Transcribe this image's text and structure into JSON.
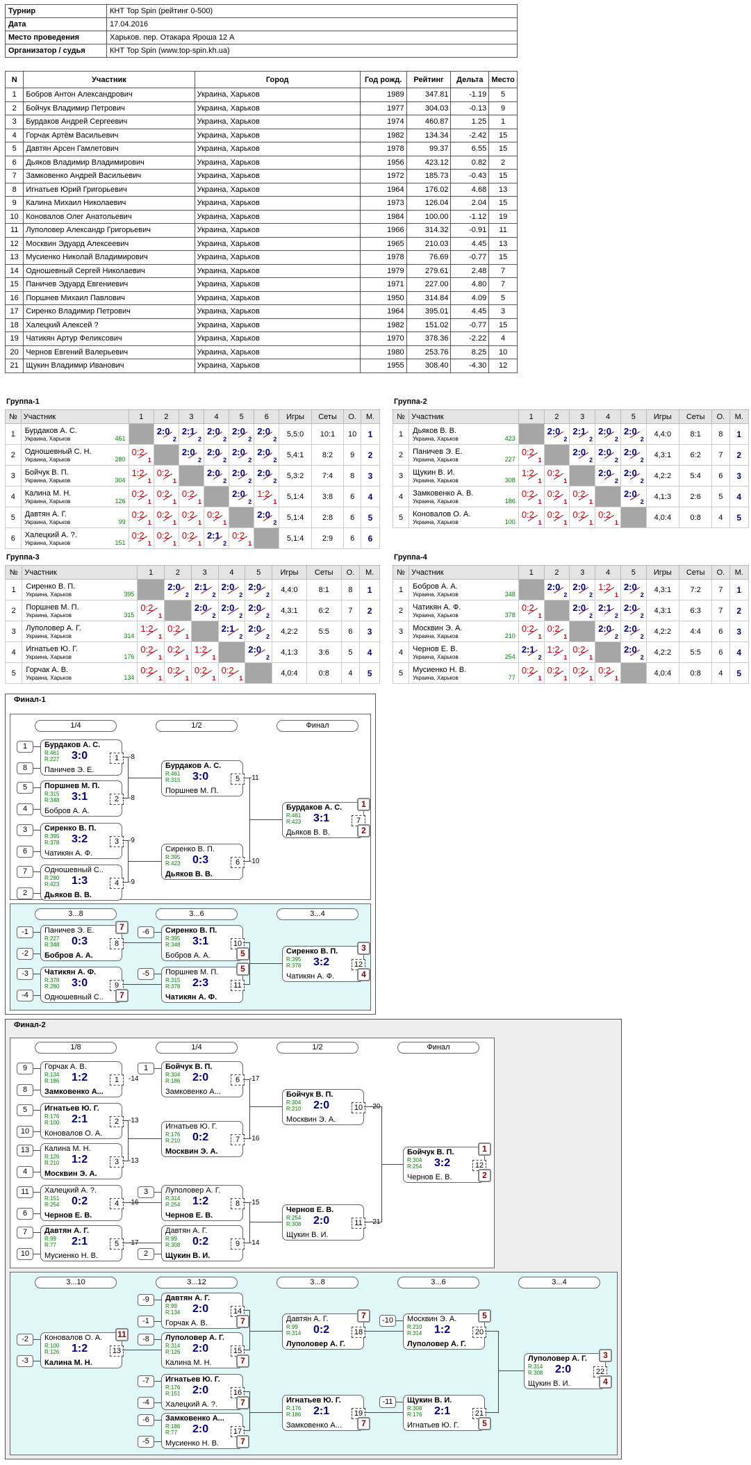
{
  "info": [
    {
      "k": "Турнир",
      "v": "КНТ Top Spin (рейтинг 0-500)"
    },
    {
      "k": "Дата",
      "v": "17.04.2016"
    },
    {
      "k": "Место проведения",
      "v": "Харьков. пер. Отакара Яроша 12 А"
    },
    {
      "k": "Организатор / судья",
      "v": "КНТ Top Spin (www.top-spin.kh.ua)"
    }
  ],
  "participants_header": [
    "N",
    "Участник",
    "Город",
    "Год рожд.",
    "Рейтинг",
    "Дельта",
    "Место"
  ],
  "participants": [
    [
      "1",
      "Бобров Антон Александрович",
      "Украина, Харьков",
      "1989",
      "347.81",
      "-1.19",
      "5"
    ],
    [
      "2",
      "Бойчук Владимир Петрович",
      "Украина, Харьков",
      "1977",
      "304.03",
      "-0.13",
      "9"
    ],
    [
      "3",
      "Бурдаков Андрей Сергеевич",
      "Украина, Харьков",
      "1974",
      "460.87",
      "1.25",
      "1"
    ],
    [
      "4",
      "Горчак Артём Васильевич",
      "Украина, Харьков",
      "1982",
      "134.34",
      "-2.42",
      "15"
    ],
    [
      "5",
      "Давтян Арсен Гамлетович",
      "Украина, Харьков",
      "1978",
      "99.37",
      "6.55",
      "15"
    ],
    [
      "6",
      "Дьяков Владимир Владимирович",
      "Украина, Харьков",
      "1956",
      "423.12",
      "0.82",
      "2"
    ],
    [
      "7",
      "Замковенко Андрей Васильевич",
      "Украина, Харьков",
      "1972",
      "185.73",
      "-0.43",
      "15"
    ],
    [
      "8",
      "Игнатьев Юрий Григорьевич",
      "Украина, Харьков",
      "1964",
      "176.02",
      "4.68",
      "13"
    ],
    [
      "9",
      "Калина Михаил Николаевич",
      "Украина, Харьков",
      "1973",
      "126.04",
      "2.04",
      "15"
    ],
    [
      "10",
      "Коновалов Олег Анатольевич",
      "Украина, Харьков",
      "1984",
      "100.00",
      "-1.12",
      "19"
    ],
    [
      "11",
      "Луполовер Александр Григорьевич",
      "Украина, Харьков",
      "1966",
      "314.32",
      "-0.91",
      "11"
    ],
    [
      "12",
      "Москвин Эдуард Алексеевич",
      "Украина, Харьков",
      "1965",
      "210.03",
      "4.45",
      "13"
    ],
    [
      "13",
      "Мусиенко Николай Владимирович",
      "Украина, Харьков",
      "1978",
      "76.69",
      "-0.77",
      "15"
    ],
    [
      "14",
      "Одношевный Сергей Николаевич",
      "Украина, Харьков",
      "1979",
      "279.61",
      "2.48",
      "7"
    ],
    [
      "15",
      "Паничев Эдуард Евгениевич",
      "Украина, Харьков",
      "1971",
      "227.00",
      "4.80",
      "7"
    ],
    [
      "16",
      "Поршнев Михаил Павлович",
      "Украина, Харьков",
      "1950",
      "314.84",
      "4.09",
      "5"
    ],
    [
      "17",
      "Сиренко Владимир Петрович",
      "Украина, Харьков",
      "1964",
      "395.01",
      "4.45",
      "3"
    ],
    [
      "18",
      "Халецкий Алексей ?",
      "Украина, Харьков",
      "1982",
      "151.02",
      "-0.77",
      "15"
    ],
    [
      "19",
      "Чатикян Артур Феликсович",
      "Украина, Харьков",
      "1970",
      "378.36",
      "-2.22",
      "4"
    ],
    [
      "20",
      "Чернов Евгений Валерьевич",
      "Украина, Харьков",
      "1980",
      "253.76",
      "8.25",
      "10"
    ],
    [
      "21",
      "Щукин Владимир Иванович",
      "Украина, Харьков",
      "1955",
      "308.40",
      "-4.30",
      "12"
    ]
  ],
  "city": "Украина, Харьков",
  "group_cols": {
    "no": "№",
    "name": "Участник",
    "games": "Игры",
    "sets": "Сеты",
    "pts": "О.",
    "place": "М."
  },
  "groups": [
    {
      "title": "Группа-1",
      "rows": [
        {
          "n": "1",
          "name": "Бурдаков А. С.",
          "r": "461",
          "res": [
            null,
            "2:0",
            "2:1",
            "2:0",
            "2:0",
            "2:0"
          ],
          "g": "5,5:0",
          "s": "10:1",
          "o": "10",
          "m": "1"
        },
        {
          "n": "2",
          "name": "Одношевный С. Н.",
          "r": "280",
          "res": [
            "0:2",
            null,
            "2:0",
            "2:0",
            "2:0",
            "2:0"
          ],
          "g": "5,4:1",
          "s": "8:2",
          "o": "9",
          "m": "2"
        },
        {
          "n": "3",
          "name": "Бойчук В. П.",
          "r": "304",
          "res": [
            "1:2",
            "0:2",
            null,
            "2:0",
            "2:0",
            "2:0"
          ],
          "g": "5,3:2",
          "s": "7:4",
          "o": "8",
          "m": "3"
        },
        {
          "n": "4",
          "name": "Калина М. Н.",
          "r": "126",
          "res": [
            "0:2",
            "0:2",
            "0:2",
            null,
            "2:0",
            "1:2"
          ],
          "g": "5,1:4",
          "s": "3:8",
          "o": "6",
          "m": "4"
        },
        {
          "n": "5",
          "name": "Давтян А. Г.",
          "r": "99",
          "res": [
            "0:2",
            "0:2",
            "0:2",
            "0:2",
            null,
            "2:0"
          ],
          "g": "5,1:4",
          "s": "2:8",
          "o": "6",
          "m": "5"
        },
        {
          "n": "6",
          "name": "Халецкий А. ?.",
          "r": "151",
          "res": [
            "0:2",
            "0:2",
            "0:2",
            "2:1",
            "0:2",
            null
          ],
          "g": "5,1:4",
          "s": "2:9",
          "o": "6",
          "m": "6"
        }
      ]
    },
    {
      "title": "Группа-2",
      "rows": [
        {
          "n": "1",
          "name": "Дьяков В. В.",
          "r": "423",
          "res": [
            null,
            "2:0",
            "2:1",
            "2:0",
            "2:0"
          ],
          "g": "4,4:0",
          "s": "8:1",
          "o": "8",
          "m": "1"
        },
        {
          "n": "2",
          "name": "Паничев Э. Е.",
          "r": "227",
          "res": [
            "0:2",
            null,
            "2:0",
            "2:0",
            "2:0"
          ],
          "g": "4,3:1",
          "s": "6:2",
          "o": "7",
          "m": "2"
        },
        {
          "n": "3",
          "name": "Щукин В. И.",
          "r": "308",
          "res": [
            "1:2",
            "0:2",
            null,
            "2:0",
            "2:0"
          ],
          "g": "4,2:2",
          "s": "5:4",
          "o": "6",
          "m": "3"
        },
        {
          "n": "4",
          "name": "Замковенко А. В.",
          "r": "186",
          "res": [
            "0:2",
            "0:2",
            "0:2",
            null,
            "2:0"
          ],
          "g": "4,1:3",
          "s": "2:6",
          "o": "5",
          "m": "4"
        },
        {
          "n": "5",
          "name": "Коновалов О. А.",
          "r": "100",
          "res": [
            "0:2",
            "0:2",
            "0:2",
            "0:2",
            null
          ],
          "g": "4,0:4",
          "s": "0:8",
          "o": "4",
          "m": "5"
        }
      ]
    },
    {
      "title": "Группа-3",
      "rows": [
        {
          "n": "1",
          "name": "Сиренко В. П.",
          "r": "395",
          "res": [
            null,
            "2:0",
            "2:1",
            "2:0",
            "2:0"
          ],
          "g": "4,4:0",
          "s": "8:1",
          "o": "8",
          "m": "1"
        },
        {
          "n": "2",
          "name": "Поршнев М. П.",
          "r": "315",
          "res": [
            "0:2",
            null,
            "2:0",
            "2:0",
            "2:0"
          ],
          "g": "4,3:1",
          "s": "6:2",
          "o": "7",
          "m": "2"
        },
        {
          "n": "3",
          "name": "Луполовер А. Г.",
          "r": "314",
          "res": [
            "1:2",
            "0:2",
            null,
            "2:1",
            "2:0"
          ],
          "g": "4,2:2",
          "s": "5:5",
          "o": "6",
          "m": "3"
        },
        {
          "n": "4",
          "name": "Игнатьев Ю. Г.",
          "r": "176",
          "res": [
            "0:2",
            "0:2",
            "1:2",
            null,
            "2:0"
          ],
          "g": "4,1:3",
          "s": "3:6",
          "o": "5",
          "m": "4"
        },
        {
          "n": "5",
          "name": "Горчак А. В.",
          "r": "134",
          "res": [
            "0:2",
            "0:2",
            "0:2",
            "0:2",
            null
          ],
          "g": "4,0:4",
          "s": "0:8",
          "o": "4",
          "m": "5"
        }
      ]
    },
    {
      "title": "Группа-4",
      "rows": [
        {
          "n": "1",
          "name": "Бобров А. А.",
          "r": "348",
          "res": [
            null,
            "2:0",
            "2:0",
            "1:2",
            "2:0"
          ],
          "g": "4,3:1",
          "s": "7:2",
          "o": "7",
          "m": "1"
        },
        {
          "n": "2",
          "name": "Чатикян А. Ф.",
          "r": "378",
          "res": [
            "0:2",
            null,
            "2:0",
            "2:1",
            "2:0"
          ],
          "g": "4,3:1",
          "s": "6:3",
          "o": "7",
          "m": "2"
        },
        {
          "n": "3",
          "name": "Москвин Э. А.",
          "r": "210",
          "res": [
            "0:2",
            "0:2",
            null,
            "2:0",
            "2:0"
          ],
          "g": "4,2:2",
          "s": "4:4",
          "o": "6",
          "m": "3"
        },
        {
          "n": "4",
          "name": "Чернов Е. В.",
          "r": "254",
          "res": [
            "2:1",
            "1:2",
            "0:2",
            null,
            "2:0"
          ],
          "g": "4,2:2",
          "s": "5:5",
          "o": "6",
          "m": "4"
        },
        {
          "n": "5",
          "name": "Мусиенко Н. В.",
          "r": "77",
          "res": [
            "0:2",
            "0:2",
            "0:2",
            "0:2",
            null
          ],
          "g": "4,0:4",
          "s": "0:8",
          "o": "4",
          "m": "5"
        }
      ]
    }
  ],
  "finals": [
    {
      "title": "Финал-1",
      "rounds": [
        "1/4",
        "1/2",
        "Финал",
        "3...8",
        "3...6",
        "3...4"
      ],
      "matches": [
        {
          "p1": "Бурдаков А. С.",
          "r1": "R:461",
          "p2": "Паничев Э. Е.",
          "r2": "R:227",
          "s": "3:0",
          "n": "1",
          "w": 1,
          "s1": "1",
          "s2": "8",
          "out": "-8"
        },
        {
          "p1": "Поршнев М. П.",
          "r1": "R:315",
          "p2": "Бобров А. А.",
          "r2": "R:348",
          "s": "3:1",
          "n": "2",
          "w": 1,
          "s1": "5",
          "s2": "4",
          "out": "-8"
        },
        {
          "p1": "Сиренко В. П.",
          "r1": "R:395",
          "p2": "Чатикян А. Ф.",
          "r2": "R:378",
          "s": "3:2",
          "n": "3",
          "w": 1,
          "s1": "3",
          "s2": "6",
          "out": "-9"
        },
        {
          "p1": "Одношевный С...",
          "r1": "R:280",
          "p2": "Дьяков В. В.",
          "r2": "R:423",
          "s": "1:3",
          "n": "4",
          "w": 2,
          "s1": "7",
          "s2": "2",
          "out": "-9"
        },
        {
          "p1": "Бурдаков А. С.",
          "r1": "R:461",
          "p2": "Поршнев М. П.",
          "r2": "R:315",
          "s": "3:0",
          "n": "5",
          "w": 1,
          "out": "-11"
        },
        {
          "p1": "Сиренко В. П.",
          "r1": "R:395",
          "p2": "Дьяков В. В.",
          "r2": "R:423",
          "s": "0:3",
          "n": "6",
          "w": 2,
          "out": "-10"
        },
        {
          "p1": "Бурдаков А. С.",
          "r1": "R:461",
          "p2": "Дьяков В. В.",
          "r2": "R:423",
          "s": "3:1",
          "n": "7",
          "w": 1,
          "pl1": "1",
          "pl2": "2"
        },
        {
          "p1": "Паничев Э. Е.",
          "r1": "R:227",
          "p2": "Бобров А. А.",
          "r2": "R:348",
          "s": "0:3",
          "n": "8",
          "w": 2,
          "s1": "-1",
          "s2": "-2",
          "pl1": "7"
        },
        {
          "p1": "Чатикян А. Ф.",
          "r1": "R:378",
          "p2": "Одношевный С...",
          "r2": "R:280",
          "s": "3:0",
          "n": "9",
          "w": 1,
          "s1": "-3",
          "s2": "-4",
          "pl2": "7"
        },
        {
          "p1": "Сиренко В. П.",
          "r1": "R:395",
          "p2": "Бобров А. А.",
          "r2": "R:348",
          "s": "3:1",
          "n": "10",
          "w": 1,
          "s1": "-6",
          "pl2": "5"
        },
        {
          "p1": "Поршнев М. П.",
          "r1": "R:315",
          "p2": "Чатикян А. Ф.",
          "r2": "R:378",
          "s": "2:3",
          "n": "11",
          "w": 2,
          "s1": "-5",
          "pl1": "5"
        },
        {
          "p1": "Сиренко В. П.",
          "r1": "R:395",
          "p2": "Чатикян А. Ф.",
          "r2": "R:378",
          "s": "3:2",
          "n": "12",
          "w": 1,
          "pl1": "3",
          "pl2": "4"
        }
      ]
    },
    {
      "title": "Финал-2",
      "rounds": [
        "1/8",
        "1/4",
        "1/2",
        "Финал",
        "3...10",
        "3...12",
        "3...8",
        "3...6",
        "3...4"
      ],
      "matches": [
        {
          "p1": "Горчак А. В.",
          "r1": "R:134",
          "p2": "Замковенко А...",
          "r2": "R:186",
          "s": "1:2",
          "n": "1",
          "w": 2,
          "s1": "9",
          "s2": "8",
          "out": "-14"
        },
        {
          "p1": "Игнатьев Ю. Г.",
          "r1": "R:176",
          "p2": "Коновалов О. А.",
          "r2": "R:100",
          "s": "2:1",
          "n": "2",
          "w": 1,
          "s1": "5",
          "s2": "10",
          "out": "-13"
        },
        {
          "p1": "Калина М. Н.",
          "r1": "R:126",
          "p2": "Москвин Э. А.",
          "r2": "R:210",
          "s": "1:2",
          "n": "3",
          "w": 2,
          "s1": "13",
          "s2": "4",
          "out": "-13"
        },
        {
          "p1": "Халецкий А. ?.",
          "r1": "R:151",
          "p2": "Чернов Е. В.",
          "r2": "R:254",
          "s": "0:2",
          "n": "4",
          "w": 2,
          "s1": "11",
          "s2": "6",
          "out": "-16"
        },
        {
          "p1": "Давтян А. Г.",
          "r1": "R:99",
          "p2": "Мусиенко Н. В.",
          "r2": "R:77",
          "s": "2:1",
          "n": "5",
          "w": 1,
          "s1": "7",
          "s2": "10",
          "out": "-17"
        },
        {
          "p1": "Бойчук В. П.",
          "r1": "R:304",
          "p2": "Замковенко А...",
          "r2": "R:186",
          "s": "2:0",
          "n": "6",
          "w": 1,
          "s1": "1",
          "out": "-17"
        },
        {
          "p1": "Игнатьев Ю. Г.",
          "r1": "R:176",
          "p2": "Москвин Э. А.",
          "r2": "R:210",
          "s": "0:2",
          "n": "7",
          "w": 2,
          "out": "-16"
        },
        {
          "p1": "Луполовер А. Г.",
          "r1": "R:314",
          "p2": "Чернов Е. В.",
          "r2": "R:254",
          "s": "1:2",
          "n": "8",
          "w": 2,
          "s1": "3",
          "out": "-15"
        },
        {
          "p1": "Давтян А. Г.",
          "r1": "R:99",
          "p2": "Щукин В. И.",
          "r2": "R:308",
          "s": "0:2",
          "n": "9",
          "w": 2,
          "s2": "2",
          "out": "-14"
        },
        {
          "p1": "Бойчук В. П.",
          "r1": "R:304",
          "p2": "Москвин Э. А.",
          "r2": "R:210",
          "s": "2:0",
          "n": "10",
          "w": 1,
          "out": "-20"
        },
        {
          "p1": "Чернов Е. В.",
          "r1": "R:254",
          "p2": "Щукин В. И.",
          "r2": "R:308",
          "s": "2:0",
          "n": "11",
          "w": 1,
          "out": "-21"
        },
        {
          "p1": "Бойчук В. П.",
          "r1": "R:304",
          "p2": "Чернов Е. В.",
          "r2": "R:254",
          "s": "3:2",
          "n": "12",
          "w": 1,
          "pl1": "1",
          "pl2": "2"
        },
        {
          "p1": "Коновалов О. А.",
          "r1": "R:100",
          "p2": "Калина М. Н.",
          "r2": "R:126",
          "s": "1:2",
          "n": "13",
          "w": 2,
          "s1": "-2",
          "s2": "-3",
          "pl1": "11"
        },
        {
          "p1": "Давтян А. Г.",
          "r1": "R:99",
          "p2": "Горчак А. В.",
          "r2": "R:134",
          "s": "2:0",
          "n": "14",
          "w": 1,
          "s1": "-9",
          "s2": "-1",
          "pl2": "7"
        },
        {
          "p1": "Луполовер А. Г.",
          "r1": "R:314",
          "p2": "Калина М. Н.",
          "r2": "R:126",
          "s": "2:0",
          "n": "15",
          "w": 1,
          "s1": "-8",
          "pl2": "7"
        },
        {
          "p1": "Игнатьев Ю. Г.",
          "r1": "R:176",
          "p2": "Халецкий А. ?.",
          "r2": "R:151",
          "s": "2:0",
          "n": "16",
          "w": 1,
          "s1": "-7",
          "s2": "-4",
          "pl2": "7"
        },
        {
          "p1": "Замковенко А...",
          "r1": "R:186",
          "p2": "Мусиенко Н. В.",
          "r2": "R:77",
          "s": "2:0",
          "n": "17",
          "w": 1,
          "s1": "-6",
          "s2": "-5",
          "pl2": "7"
        },
        {
          "p1": "Давтян А. Г.",
          "r1": "R:99",
          "p2": "Луполовер А. Г.",
          "r2": "R:314",
          "s": "0:2",
          "n": "18",
          "w": 2,
          "pl1": "7"
        },
        {
          "p1": "Игнатьев Ю. Г.",
          "r1": "R:176",
          "p2": "Замковенко А...",
          "r2": "R:186",
          "s": "2:1",
          "n": "19",
          "w": 1,
          "pl2": "7"
        },
        {
          "p1": "Москвин Э. А.",
          "r1": "R:210",
          "p2": "Луполовер А. Г.",
          "r2": "R:314",
          "s": "1:2",
          "n": "20",
          "w": 2,
          "s1": "-10",
          "pl1": "5"
        },
        {
          "p1": "Щукин В. И.",
          "r1": "R:308",
          "p2": "Игнатьев Ю. Г.",
          "r2": "R:176",
          "s": "2:1",
          "n": "21",
          "w": 1,
          "s1": "-11",
          "pl2": "5"
        },
        {
          "p1": "Луполовер А. Г.",
          "r1": "R:314",
          "p2": "Щукин В. И.",
          "r2": "R:308",
          "s": "2:0",
          "n": "22",
          "w": 1,
          "pl1": "3",
          "pl2": "4"
        }
      ]
    }
  ]
}
